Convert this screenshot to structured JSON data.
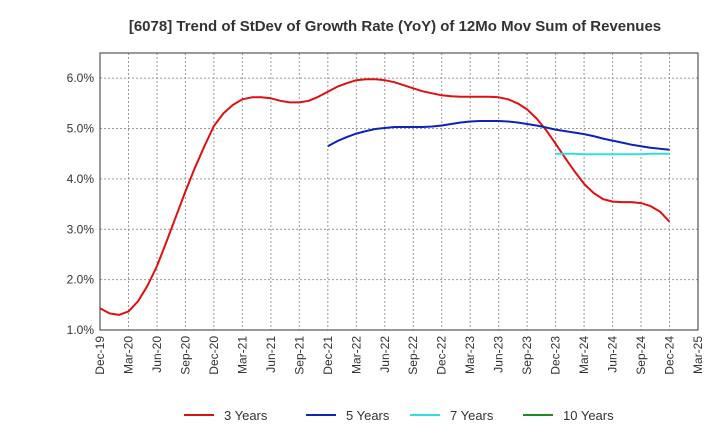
{
  "chart_data": {
    "type": "line",
    "title": "[6078]  Trend of StDev of Growth Rate (YoY) of 12Mo Mov Sum of Revenues",
    "xlabel": "",
    "ylabel": "",
    "ylim": [
      1.0,
      6.5
    ],
    "y_ticks": [
      1.0,
      2.0,
      3.0,
      4.0,
      5.0,
      6.0
    ],
    "y_tick_labels": [
      "1.0%",
      "2.0%",
      "3.0%",
      "4.0%",
      "5.0%",
      "6.0%"
    ],
    "x_tick_labels": [
      "Dec-19",
      "Mar-20",
      "Jun-20",
      "Sep-20",
      "Dec-20",
      "Mar-21",
      "Jun-21",
      "Sep-21",
      "Dec-21",
      "Mar-22",
      "Jun-22",
      "Sep-22",
      "Dec-22",
      "Mar-23",
      "Jun-23",
      "Sep-23",
      "Dec-23",
      "Mar-24",
      "Jun-24",
      "Sep-24",
      "Dec-24",
      "Mar-25"
    ],
    "grid": true,
    "legend_position": "bottom",
    "series": [
      {
        "name": "3 Years",
        "color": "#dd1111",
        "start_index": 0,
        "values": [
          1.43,
          1.33,
          1.3,
          1.37,
          1.57,
          1.88,
          2.27,
          2.75,
          3.25,
          3.75,
          4.22,
          4.65,
          5.05,
          5.3,
          5.47,
          5.58,
          5.62,
          5.62,
          5.6,
          5.55,
          5.52,
          5.52,
          5.55,
          5.63,
          5.73,
          5.83,
          5.9,
          5.96,
          5.98,
          5.98,
          5.96,
          5.92,
          5.86,
          5.8,
          5.74,
          5.7,
          5.66,
          5.64,
          5.63,
          5.63,
          5.63,
          5.63,
          5.62,
          5.58,
          5.5,
          5.38,
          5.2,
          4.97,
          4.7,
          4.42,
          4.15,
          3.9,
          3.72,
          3.6,
          3.55,
          3.54,
          3.54,
          3.52,
          3.46,
          3.35,
          3.15
        ]
      },
      {
        "name": "5 Years",
        "color": "#1122bb",
        "start_index": 24,
        "values": [
          4.65,
          4.75,
          4.83,
          4.9,
          4.95,
          4.99,
          5.01,
          5.03,
          5.03,
          5.03,
          5.03,
          5.04,
          5.06,
          5.09,
          5.12,
          5.14,
          5.15,
          5.15,
          5.15,
          5.14,
          5.12,
          5.09,
          5.06,
          5.02,
          4.98,
          4.95,
          4.92,
          4.89,
          4.85,
          4.8,
          4.76,
          4.72,
          4.68,
          4.65,
          4.62,
          4.6,
          4.58
        ]
      },
      {
        "name": "7 Years",
        "color": "#33dddd",
        "start_index": 48,
        "values": [
          4.5,
          4.5,
          4.5,
          4.49,
          4.49,
          4.49,
          4.49,
          4.49,
          4.49,
          4.49,
          4.5,
          4.5,
          4.5
        ]
      },
      {
        "name": "10 Years",
        "color": "#228822",
        "start_index": 0,
        "values": []
      }
    ]
  }
}
